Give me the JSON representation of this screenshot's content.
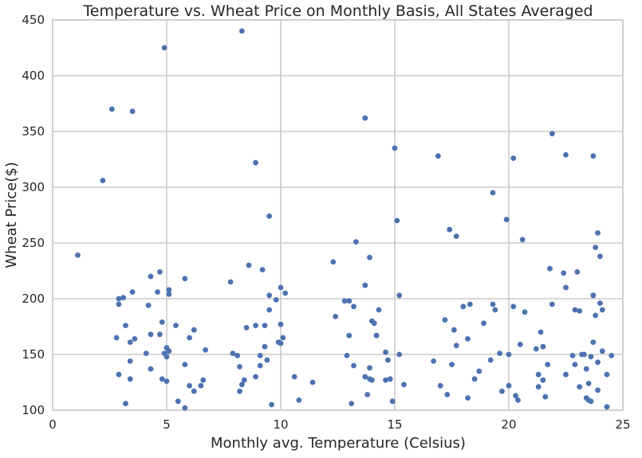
{
  "chart_data": {
    "type": "scatter",
    "title": "Temperature vs. Wheat Price on Monthly Basis, All States Averaged",
    "xlabel": "Monthly avg. Temperature (Celsius)",
    "ylabel": "Wheat Price($)",
    "xlim": [
      0,
      25
    ],
    "ylim": [
      100,
      450
    ],
    "xticks": [
      "0",
      "5",
      "10",
      "15",
      "20",
      "25"
    ],
    "yticks": [
      "100",
      "150",
      "200",
      "250",
      "300",
      "350",
      "400",
      "450"
    ],
    "grid": true,
    "marker_color": "#4c72b0",
    "series": [
      {
        "points": [
          [
            1.1,
            239
          ],
          [
            2.2,
            306
          ],
          [
            2.6,
            370
          ],
          [
            3.5,
            368
          ],
          [
            4.9,
            425
          ],
          [
            8.3,
            440
          ],
          [
            8.9,
            322
          ],
          [
            9.5,
            274
          ],
          [
            13.7,
            362
          ],
          [
            15.0,
            335
          ],
          [
            16.9,
            328
          ],
          [
            21.9,
            348
          ],
          [
            22.5,
            329
          ],
          [
            23.7,
            328
          ],
          [
            20.2,
            326
          ],
          [
            19.3,
            295
          ],
          [
            19.9,
            271
          ],
          [
            15.1,
            270
          ],
          [
            17.4,
            262
          ],
          [
            17.7,
            256
          ],
          [
            20.6,
            253
          ],
          [
            23.9,
            259
          ],
          [
            23.8,
            246
          ],
          [
            24.0,
            238
          ],
          [
            13.3,
            251
          ],
          [
            13.9,
            237
          ],
          [
            12.3,
            233
          ],
          [
            8.6,
            230
          ],
          [
            9.2,
            226
          ],
          [
            7.8,
            215
          ],
          [
            4.3,
            220
          ],
          [
            4.7,
            224
          ],
          [
            5.8,
            218
          ],
          [
            3.5,
            206
          ],
          [
            2.9,
            200
          ],
          [
            3.1,
            201
          ],
          [
            2.9,
            195
          ],
          [
            4.2,
            194
          ],
          [
            4.6,
            206
          ],
          [
            5.1,
            208
          ],
          [
            5.1,
            204
          ],
          [
            4.8,
            179
          ],
          [
            3.2,
            176
          ],
          [
            5.4,
            176
          ],
          [
            4.3,
            168
          ],
          [
            4.7,
            168
          ],
          [
            2.8,
            165
          ],
          [
            3.6,
            164
          ],
          [
            3.4,
            161
          ],
          [
            4.1,
            151
          ],
          [
            5.0,
            156
          ],
          [
            4.9,
            151
          ],
          [
            5.1,
            153
          ],
          [
            5.0,
            148
          ],
          [
            3.4,
            144
          ],
          [
            4.3,
            137
          ],
          [
            2.9,
            132
          ],
          [
            3.4,
            128
          ],
          [
            4.8,
            128
          ],
          [
            5.0,
            126
          ],
          [
            3.2,
            106
          ],
          [
            5.5,
            108
          ],
          [
            5.8,
            102
          ],
          [
            5.8,
            141
          ],
          [
            6.0,
            122
          ],
          [
            6.2,
            117
          ],
          [
            6.2,
            172
          ],
          [
            6.0,
            165
          ],
          [
            6.5,
            122
          ],
          [
            6.6,
            127
          ],
          [
            6.7,
            154
          ],
          [
            7.9,
            151
          ],
          [
            8.1,
            149
          ],
          [
            8.2,
            139
          ],
          [
            8.2,
            117
          ],
          [
            8.3,
            123
          ],
          [
            8.4,
            127
          ],
          [
            8.5,
            174
          ],
          [
            8.9,
            176
          ],
          [
            8.9,
            130
          ],
          [
            9.1,
            140
          ],
          [
            9.1,
            149
          ],
          [
            9.3,
            176
          ],
          [
            9.3,
            157
          ],
          [
            9.4,
            145
          ],
          [
            9.5,
            190
          ],
          [
            9.5,
            203
          ],
          [
            9.6,
            105
          ],
          [
            9.8,
            199
          ],
          [
            9.9,
            161
          ],
          [
            10.0,
            160
          ],
          [
            10.0,
            177
          ],
          [
            10.0,
            210
          ],
          [
            10.1,
            165
          ],
          [
            10.2,
            205
          ],
          [
            10.6,
            130
          ],
          [
            10.8,
            109
          ],
          [
            11.4,
            125
          ],
          [
            12.4,
            184
          ],
          [
            12.8,
            198
          ],
          [
            12.9,
            149
          ],
          [
            13.0,
            167
          ],
          [
            13.0,
            198
          ],
          [
            13.2,
            140
          ],
          [
            13.2,
            193
          ],
          [
            13.1,
            106
          ],
          [
            13.7,
            212
          ],
          [
            13.7,
            130
          ],
          [
            13.8,
            114
          ],
          [
            13.9,
            128
          ],
          [
            13.9,
            138
          ],
          [
            14.0,
            127
          ],
          [
            14.0,
            180
          ],
          [
            14.1,
            178
          ],
          [
            14.2,
            167
          ],
          [
            14.3,
            190
          ],
          [
            14.6,
            127
          ],
          [
            14.6,
            152
          ],
          [
            14.7,
            145
          ],
          [
            14.8,
            128
          ],
          [
            14.9,
            108
          ],
          [
            15.2,
            203
          ],
          [
            15.2,
            150
          ],
          [
            15.4,
            123
          ],
          [
            16.7,
            144
          ],
          [
            17.0,
            122
          ],
          [
            17.2,
            181
          ],
          [
            17.3,
            114
          ],
          [
            17.5,
            141
          ],
          [
            17.6,
            172
          ],
          [
            17.7,
            158
          ],
          [
            18.0,
            193
          ],
          [
            18.2,
            111
          ],
          [
            18.2,
            164
          ],
          [
            18.3,
            195
          ],
          [
            18.5,
            128
          ],
          [
            18.7,
            135
          ],
          [
            18.9,
            178
          ],
          [
            19.2,
            145
          ],
          [
            19.3,
            195
          ],
          [
            19.4,
            190
          ],
          [
            19.6,
            151
          ],
          [
            19.7,
            117
          ],
          [
            20.0,
            150
          ],
          [
            20.0,
            122
          ],
          [
            20.2,
            193
          ],
          [
            20.3,
            113
          ],
          [
            20.4,
            109
          ],
          [
            20.5,
            159
          ],
          [
            20.7,
            188
          ],
          [
            21.2,
            155
          ],
          [
            21.3,
            132
          ],
          [
            21.4,
            170
          ],
          [
            21.5,
            157
          ],
          [
            21.5,
            127
          ],
          [
            21.6,
            112
          ],
          [
            21.7,
            141
          ],
          [
            21.8,
            227
          ],
          [
            21.9,
            195
          ],
          [
            21.3,
            121
          ],
          [
            22.4,
            223
          ],
          [
            22.5,
            132
          ],
          [
            22.5,
            210
          ],
          [
            22.8,
            149
          ],
          [
            22.9,
            190
          ],
          [
            22.9,
            141
          ],
          [
            23.0,
            224
          ],
          [
            23.1,
            189
          ],
          [
            23.1,
            121
          ],
          [
            23.2,
            150
          ],
          [
            23.3,
            150
          ],
          [
            23.4,
            137
          ],
          [
            23.4,
            111
          ],
          [
            23.5,
            109
          ],
          [
            23.5,
            124
          ],
          [
            23.6,
            148
          ],
          [
            23.6,
            108
          ],
          [
            23.7,
            161
          ],
          [
            23.7,
            203
          ],
          [
            23.7,
            203
          ],
          [
            23.8,
            185
          ],
          [
            23.9,
            118
          ],
          [
            23.9,
            143
          ],
          [
            24.0,
            196
          ],
          [
            24.1,
            153
          ],
          [
            24.1,
            190
          ],
          [
            24.3,
            132
          ],
          [
            24.3,
            103
          ],
          [
            24.5,
            149
          ]
        ]
      }
    ]
  }
}
